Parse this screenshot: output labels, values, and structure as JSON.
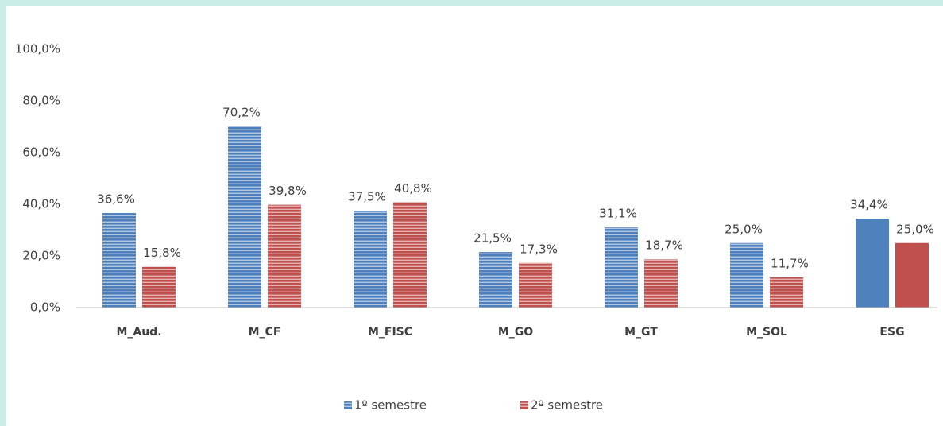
{
  "chart_data": {
    "type": "bar",
    "categories": [
      "M_Aud.",
      "M_CF",
      "M_FISC",
      "M_GO",
      "M_GT",
      "M_SOL",
      "ESG"
    ],
    "series": [
      {
        "name": "1º semestre",
        "color": "#4f81bd",
        "values": [
          36.6,
          70.2,
          37.5,
          21.5,
          31.1,
          25.0,
          34.4
        ],
        "value_labels": [
          "36,6%",
          "70,2%",
          "37,5%",
          "21,5%",
          "31,1%",
          "25,0%",
          "34,4%"
        ]
      },
      {
        "name": "2º semestre",
        "color": "#c0504d",
        "values": [
          15.8,
          39.8,
          40.8,
          17.3,
          18.7,
          11.7,
          25.0
        ],
        "value_labels": [
          "15,8%",
          "39,8%",
          "40,8%",
          "17,3%",
          "18,7%",
          "11,7%",
          "25,0%"
        ]
      }
    ],
    "hatched": [
      true,
      true,
      true,
      true,
      true,
      true,
      false
    ],
    "ylim": [
      0,
      100
    ],
    "yticks": [
      {
        "value": 0,
        "label": "0,0%"
      },
      {
        "value": 20,
        "label": "20,0%"
      },
      {
        "value": 40,
        "label": "40,0%"
      },
      {
        "value": 60,
        "label": "60,0%"
      },
      {
        "value": 80,
        "label": "80,0%"
      },
      {
        "value": 100,
        "label": "100,0%"
      }
    ],
    "grid": false,
    "legend": "bottom"
  }
}
